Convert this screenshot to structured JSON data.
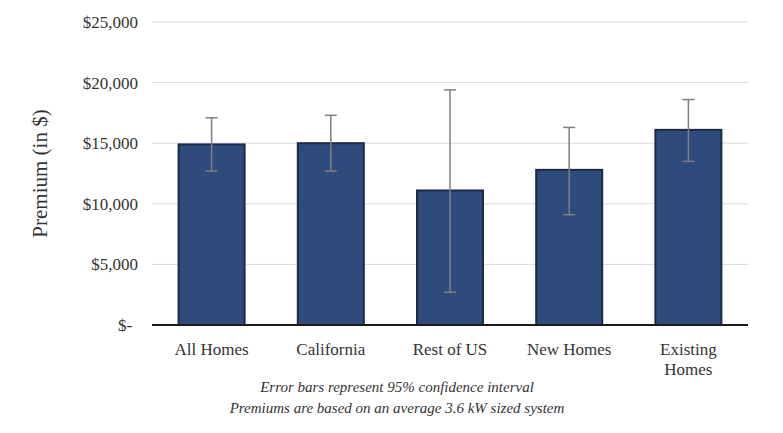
{
  "chart_data": {
    "type": "bar",
    "y_label": "Premium (in $)",
    "categories": [
      "All Homes",
      "California",
      "Rest of US",
      "New Homes",
      "Existing Homes"
    ],
    "values": [
      14900,
      15000,
      11100,
      12800,
      16100
    ],
    "ci_low": [
      12700,
      12700,
      2700,
      9100,
      13500
    ],
    "ci_high": [
      17100,
      17300,
      19400,
      16300,
      18600
    ],
    "color": "#2f4b7c",
    "ylim": [
      0,
      25000
    ],
    "yticks": [
      {
        "value": 0,
        "label": "$-"
      },
      {
        "value": 5000,
        "label": "$5,000"
      },
      {
        "value": 10000,
        "label": "$10,000"
      },
      {
        "value": 15000,
        "label": "$15,000"
      },
      {
        "value": 20000,
        "label": "$20,000"
      },
      {
        "value": 25000,
        "label": "$25,000"
      }
    ],
    "grid": true,
    "annotations": [
      "Error bars represent 95% confidence interval",
      "Premiums are based on an average 3.6 kW sized system"
    ]
  }
}
